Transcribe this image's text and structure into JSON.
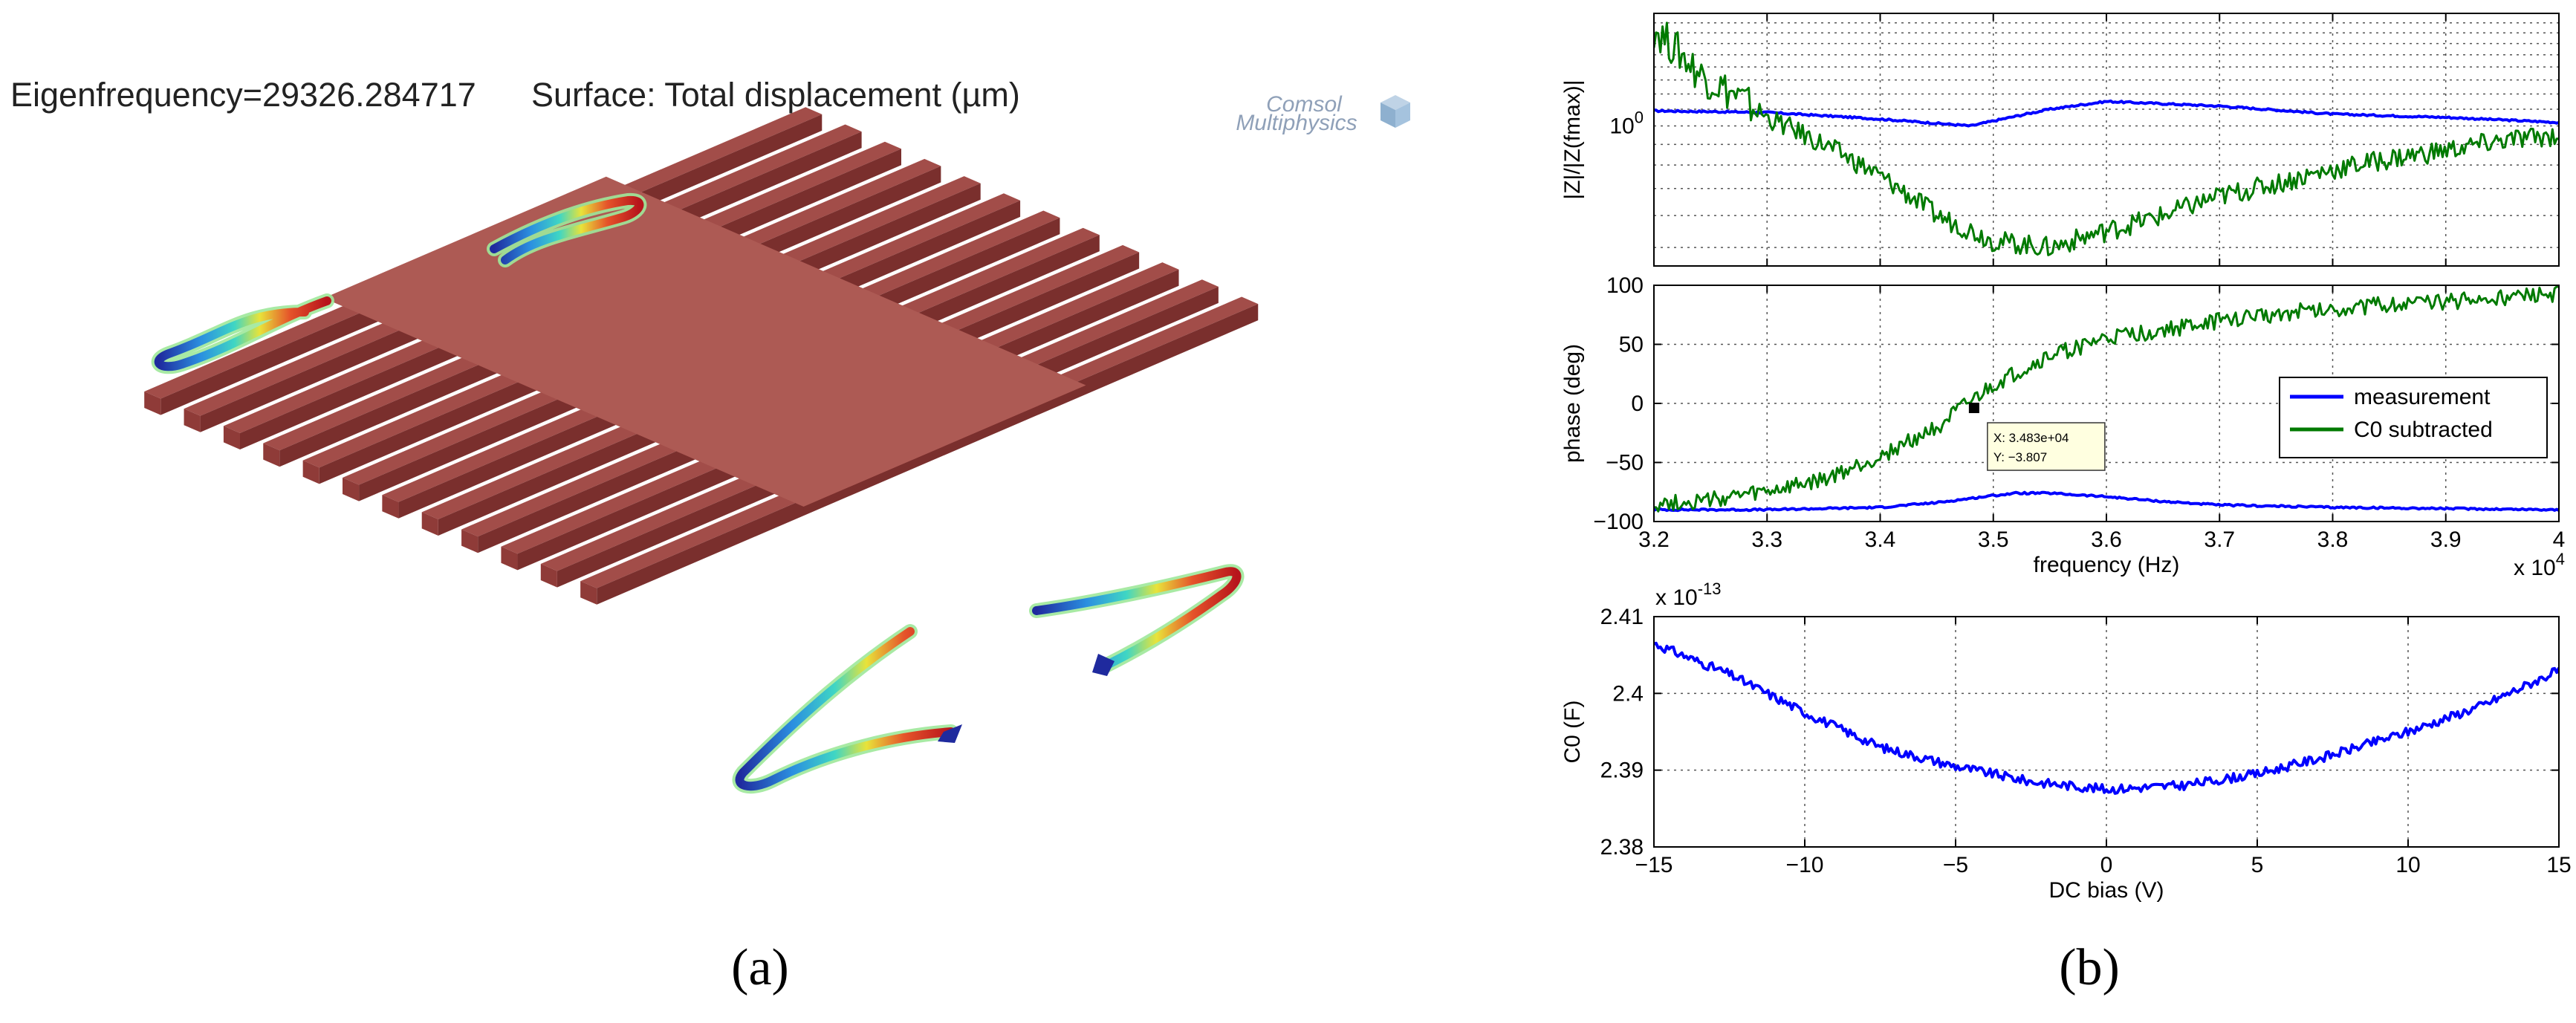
{
  "simulation": {
    "eigen_label": "Eigenfrequency=29326.284717",
    "surface_label": "Surface: Total displacement (µm)",
    "logo_line1": "Comsol",
    "logo_line2": "Multiphysics",
    "finger_count": 12,
    "colors": {
      "beam": "#a24d49",
      "beam_dark": "#7a2f2d",
      "beam_side": "#8f3b38",
      "plate": "#ad5a54"
    }
  },
  "panel_labels": {
    "a": "(a)",
    "b": "(b)"
  },
  "chart_data": [
    {
      "id": "impedance",
      "type": "line",
      "ylabel": "|Z|/|Z(fmax)|",
      "yscale": "log",
      "xlim": [
        32000,
        40000
      ],
      "ylim": [
        0.45,
        1.9
      ],
      "y_ticks": [
        {
          "value": 1,
          "label": "10^0"
        }
      ],
      "grid": true,
      "series": [
        {
          "name": "measurement",
          "color": "#0000ff",
          "x": [
            32000,
            33000,
            34000,
            34800,
            35500,
            36000,
            37000,
            38000,
            39000,
            40000
          ],
          "y": [
            1.09,
            1.08,
            1.04,
            1.0,
            1.1,
            1.15,
            1.12,
            1.07,
            1.05,
            1.02
          ]
        },
        {
          "name": "C0 subtracted",
          "color": "#007a00",
          "x": [
            32000,
            32400,
            33000,
            33500,
            34000,
            34500,
            35000,
            35500,
            36000,
            36500,
            37000,
            37500,
            38000,
            38500,
            39000,
            39500,
            40000
          ],
          "y": [
            1.75,
            1.35,
            1.05,
            0.9,
            0.75,
            0.6,
            0.52,
            0.5,
            0.55,
            0.6,
            0.67,
            0.72,
            0.78,
            0.83,
            0.87,
            0.92,
            0.95
          ]
        }
      ]
    },
    {
      "id": "phase",
      "type": "line",
      "ylabel": "phase (deg)",
      "xlabel": "frequency (Hz)",
      "xlim": [
        32000,
        40000
      ],
      "ylim": [
        -100,
        100
      ],
      "x_ticks": [
        32000,
        33000,
        34000,
        35000,
        36000,
        37000,
        38000,
        39000,
        40000
      ],
      "x_tick_labels": [
        "3.2",
        "3.3",
        "3.4",
        "3.5",
        "3.6",
        "3.7",
        "3.8",
        "3.9",
        "4"
      ],
      "x_multiplier": "x 10^4",
      "y_ticks": [
        -100,
        -50,
        0,
        50,
        100
      ],
      "y_tick_labels": [
        "−100",
        "−50",
        "0",
        "50",
        "100"
      ],
      "grid": true,
      "legend": {
        "position": "right",
        "entries": [
          "measurement",
          "C0 subtracted"
        ]
      },
      "datatip": {
        "x": 34830,
        "y": -3.807,
        "text_x": "X: 3.483e+04",
        "text_y": "Y: −3.807"
      },
      "series": [
        {
          "name": "measurement",
          "color": "#0000ff",
          "x": [
            32000,
            33000,
            34000,
            34500,
            35000,
            35200,
            35500,
            36000,
            36500,
            37000,
            38000,
            39000,
            40000
          ],
          "y": [
            -90,
            -90,
            -88,
            -84,
            -78,
            -76,
            -76,
            -79,
            -83,
            -86,
            -88,
            -89,
            -90
          ]
        },
        {
          "name": "C0 subtracted",
          "color": "#007a00",
          "x": [
            32000,
            32500,
            33000,
            33500,
            34000,
            34500,
            35000,
            35500,
            36000,
            36500,
            37000,
            37500,
            38000,
            38500,
            39000,
            39500,
            40000
          ],
          "y": [
            -85,
            -82,
            -75,
            -65,
            -45,
            -20,
            15,
            40,
            55,
            62,
            70,
            76,
            80,
            84,
            86,
            89,
            92
          ]
        }
      ]
    },
    {
      "id": "capacitance",
      "type": "line",
      "ylabel": "C0 (F)",
      "xlabel": "DC bias (V)",
      "xlim": [
        -15,
        15
      ],
      "ylim": [
        2.38,
        2.41
      ],
      "y_multiplier": "x 10^-13",
      "x_ticks": [
        -15,
        -10,
        -5,
        0,
        5,
        10,
        15
      ],
      "x_tick_labels": [
        "−15",
        "−10",
        "−5",
        "0",
        "5",
        "10",
        "15"
      ],
      "y_ticks": [
        2.38,
        2.39,
        2.4,
        2.41
      ],
      "y_tick_labels": [
        "2.38",
        "2.39",
        "2.4",
        "2.41"
      ],
      "grid": true,
      "series": [
        {
          "name": "C0",
          "color": "#0000ff",
          "x": [
            -15,
            -12.5,
            -10,
            -7.5,
            -5,
            -2.5,
            0,
            2.5,
            5,
            7.5,
            10,
            12.5,
            15
          ],
          "y": [
            2.4065,
            2.4025,
            2.3975,
            2.393,
            2.3905,
            2.3885,
            2.3875,
            2.388,
            2.3895,
            2.392,
            2.395,
            2.3985,
            2.403
          ]
        }
      ]
    }
  ]
}
